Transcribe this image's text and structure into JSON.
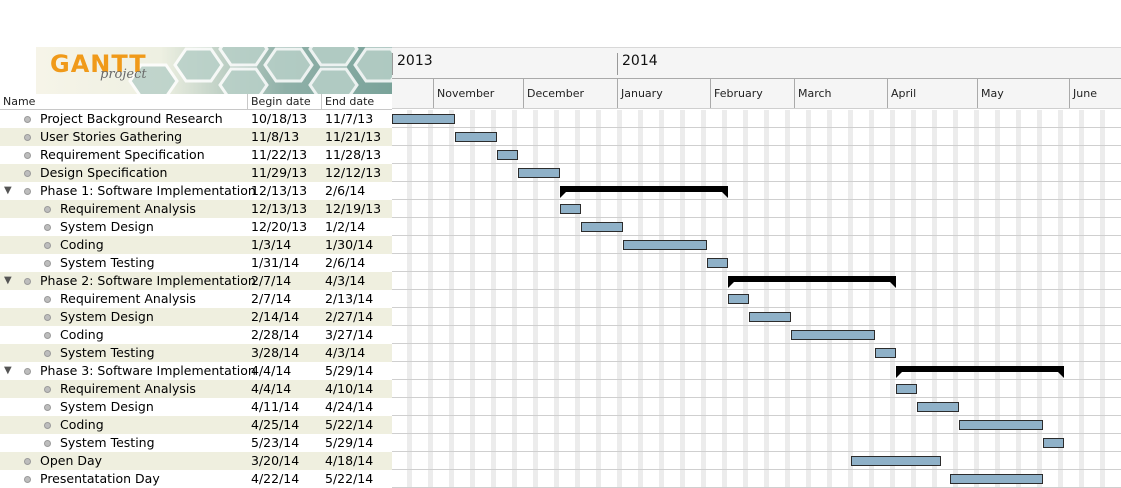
{
  "logo": {
    "text": "GANTT",
    "sub": "project"
  },
  "columns": {
    "name": "Name",
    "begin": "Begin date",
    "end": "End date"
  },
  "timeline": {
    "years": [
      {
        "label": "2013"
      },
      {
        "label": "2014"
      }
    ],
    "months": [
      {
        "label": "November"
      },
      {
        "label": "December"
      },
      {
        "label": "January"
      },
      {
        "label": "February"
      },
      {
        "label": "March"
      },
      {
        "label": "April"
      },
      {
        "label": "May"
      },
      {
        "label": "June"
      }
    ]
  },
  "tasks": [
    {
      "name": "Project Background Research",
      "begin": "10/18/13",
      "end": "11/7/13",
      "level": 0,
      "type": "task"
    },
    {
      "name": "User Stories Gathering",
      "begin": "11/8/13",
      "end": "11/21/13",
      "level": 0,
      "type": "task"
    },
    {
      "name": "Requirement Specification",
      "begin": "11/22/13",
      "end": "11/28/13",
      "level": 0,
      "type": "task"
    },
    {
      "name": "Design Specification",
      "begin": "11/29/13",
      "end": "12/12/13",
      "level": 0,
      "type": "task"
    },
    {
      "name": "Phase 1: Software Implementation",
      "begin": "12/13/13",
      "end": "2/6/14",
      "level": 0,
      "type": "summary"
    },
    {
      "name": "Requirement Analysis",
      "begin": "12/13/13",
      "end": "12/19/13",
      "level": 1,
      "type": "task"
    },
    {
      "name": "System Design",
      "begin": "12/20/13",
      "end": "1/2/14",
      "level": 1,
      "type": "task"
    },
    {
      "name": "Coding",
      "begin": "1/3/14",
      "end": "1/30/14",
      "level": 1,
      "type": "task"
    },
    {
      "name": "System Testing",
      "begin": "1/31/14",
      "end": "2/6/14",
      "level": 1,
      "type": "task"
    },
    {
      "name": "Phase 2: Software Implementation",
      "begin": "2/7/14",
      "end": "4/3/14",
      "level": 0,
      "type": "summary"
    },
    {
      "name": "Requirement Analysis",
      "begin": "2/7/14",
      "end": "2/13/14",
      "level": 1,
      "type": "task"
    },
    {
      "name": "System Design",
      "begin": "2/14/14",
      "end": "2/27/14",
      "level": 1,
      "type": "task"
    },
    {
      "name": "Coding",
      "begin": "2/28/14",
      "end": "3/27/14",
      "level": 1,
      "type": "task"
    },
    {
      "name": "System Testing",
      "begin": "3/28/14",
      "end": "4/3/14",
      "level": 1,
      "type": "task"
    },
    {
      "name": "Phase 3: Software Implementation",
      "begin": "4/4/14",
      "end": "5/29/14",
      "level": 0,
      "type": "summary"
    },
    {
      "name": "Requirement Analysis",
      "begin": "4/4/14",
      "end": "4/10/14",
      "level": 1,
      "type": "task"
    },
    {
      "name": "System Design",
      "begin": "4/11/14",
      "end": "4/24/14",
      "level": 1,
      "type": "task"
    },
    {
      "name": "Coding",
      "begin": "4/25/14",
      "end": "5/22/14",
      "level": 1,
      "type": "task"
    },
    {
      "name": "System Testing",
      "begin": "5/23/14",
      "end": "5/29/14",
      "level": 1,
      "type": "task"
    },
    {
      "name": "Open Day",
      "begin": "3/20/14",
      "end": "4/18/14",
      "level": 0,
      "type": "task"
    },
    {
      "name": "Presentatation Day",
      "begin": "4/22/14",
      "end": "5/22/14",
      "level": 0,
      "type": "task"
    }
  ]
}
